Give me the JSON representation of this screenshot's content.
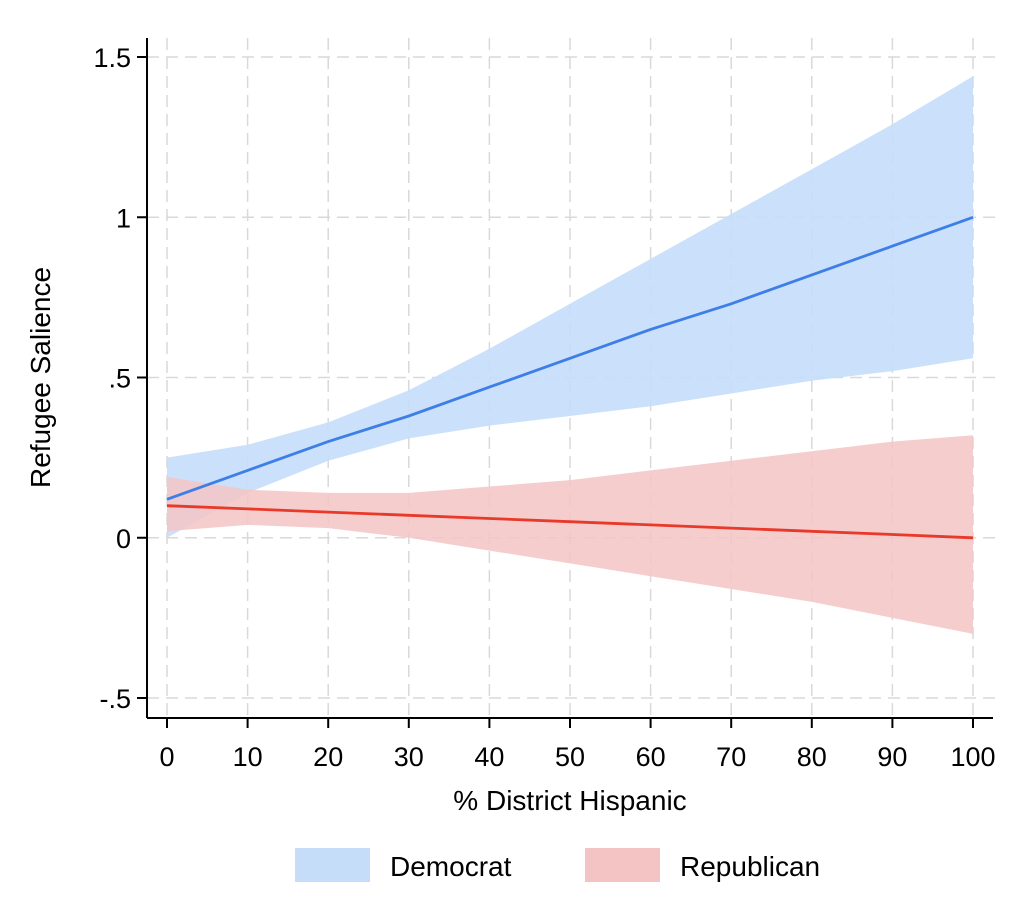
{
  "chart_data": {
    "type": "line",
    "title": "",
    "xlabel": "% District Hispanic",
    "ylabel": "Refugee Salience",
    "xlim": [
      0,
      100
    ],
    "ylim": [
      -0.5,
      1.5
    ],
    "x_ticks": [
      0,
      10,
      20,
      30,
      40,
      50,
      60,
      70,
      80,
      90,
      100
    ],
    "x_tick_labels": [
      "0",
      "10",
      "20",
      "30",
      "40",
      "50",
      "60",
      "70",
      "80",
      "90",
      "100"
    ],
    "y_ticks": [
      -0.5,
      0,
      0.5,
      1,
      1.5
    ],
    "y_tick_labels": [
      "-.5",
      "0",
      ".5",
      "1",
      "1.5"
    ],
    "grid": true,
    "legend_position": "bottom",
    "series": [
      {
        "name": "Democrat",
        "color": "#3d7fe6",
        "band_color": "#c5ddf9",
        "x": [
          0,
          10,
          20,
          30,
          40,
          50,
          60,
          70,
          80,
          90,
          100
        ],
        "y": [
          0.12,
          0.21,
          0.3,
          0.38,
          0.47,
          0.56,
          0.65,
          0.73,
          0.82,
          0.91,
          1.0
        ],
        "ci_lower": [
          0.0,
          0.14,
          0.24,
          0.31,
          0.35,
          0.38,
          0.41,
          0.45,
          0.49,
          0.52,
          0.56
        ],
        "ci_upper": [
          0.25,
          0.29,
          0.36,
          0.46,
          0.59,
          0.73,
          0.87,
          1.01,
          1.15,
          1.29,
          1.44
        ]
      },
      {
        "name": "Republican",
        "color": "#e8392a",
        "band_color": "#f4c4c4",
        "x": [
          0,
          10,
          20,
          30,
          40,
          50,
          60,
          70,
          80,
          90,
          100
        ],
        "y": [
          0.1,
          0.09,
          0.08,
          0.07,
          0.06,
          0.05,
          0.04,
          0.03,
          0.02,
          0.01,
          0.0
        ],
        "ci_lower": [
          0.02,
          0.04,
          0.03,
          0.0,
          -0.04,
          -0.08,
          -0.12,
          -0.16,
          -0.2,
          -0.25,
          -0.3
        ],
        "ci_upper": [
          0.19,
          0.15,
          0.14,
          0.14,
          0.16,
          0.18,
          0.21,
          0.24,
          0.27,
          0.3,
          0.32
        ]
      }
    ]
  }
}
